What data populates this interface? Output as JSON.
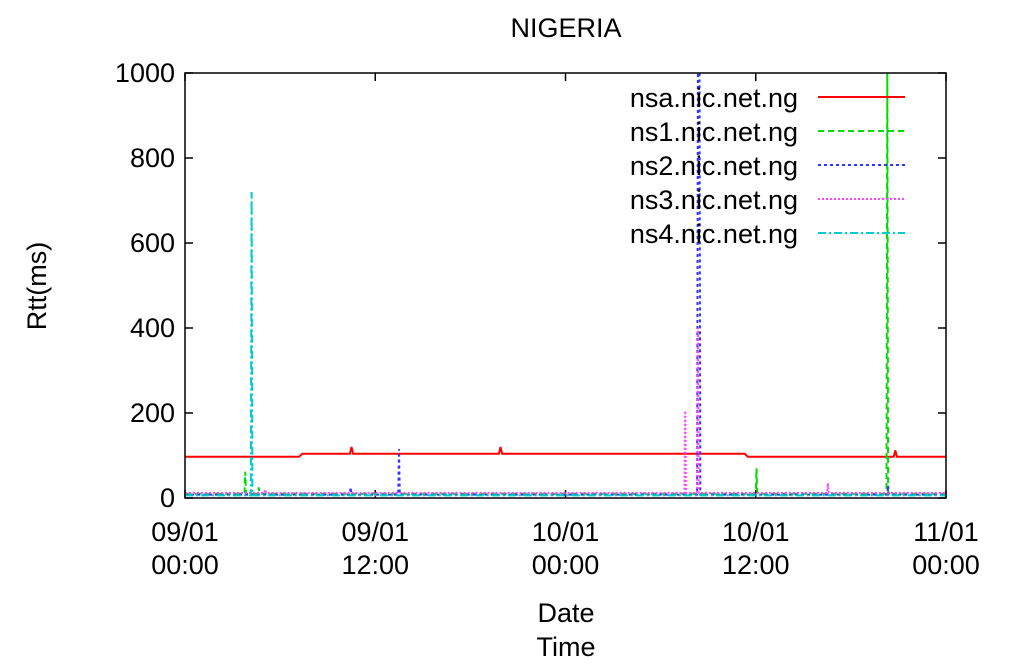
{
  "chart_data": {
    "type": "line",
    "title": "NIGERIA",
    "ylabel": "Rtt(ms)",
    "xlabel_lines": [
      "Date",
      "Time"
    ],
    "ylim": [
      0,
      1000
    ],
    "xlim": [
      0,
      48
    ],
    "yticks": [
      0,
      200,
      400,
      600,
      800,
      1000
    ],
    "xticks": [
      {
        "x": 0,
        "date": "09/01",
        "time": "00:00"
      },
      {
        "x": 12,
        "date": "09/01",
        "time": "12:00"
      },
      {
        "x": 24,
        "date": "10/01",
        "time": "00:00"
      },
      {
        "x": 36,
        "date": "10/01",
        "time": "12:00"
      },
      {
        "x": 48,
        "date": "11/01",
        "time": "00:00"
      }
    ],
    "grid": false,
    "legend_position": "top-right",
    "series": [
      {
        "name": "nsa.nic.net.ng",
        "color": "#ff0000",
        "dash": "",
        "points": [
          [
            0,
            97
          ],
          [
            7.2,
            97
          ],
          [
            7.4,
            104
          ],
          [
            10.4,
            104
          ],
          [
            10.5,
            120
          ],
          [
            10.6,
            104
          ],
          [
            19.8,
            104
          ],
          [
            19.9,
            120
          ],
          [
            20,
            104
          ],
          [
            35.3,
            104
          ],
          [
            35.5,
            97
          ],
          [
            44.7,
            97
          ],
          [
            44.8,
            112
          ],
          [
            44.9,
            97
          ],
          [
            48,
            97
          ]
        ]
      },
      {
        "name": "ns1.nic.net.ng",
        "color": "#00dd00",
        "dash": "6,4",
        "points": [
          [
            0,
            10
          ],
          [
            3.75,
            10
          ],
          [
            3.8,
            62
          ],
          [
            3.85,
            10
          ],
          [
            4.6,
            10
          ],
          [
            4.65,
            25
          ],
          [
            4.7,
            10
          ],
          [
            36,
            10
          ],
          [
            36.05,
            70
          ],
          [
            36.1,
            10
          ],
          [
            44.25,
            10
          ],
          [
            44.3,
            1000
          ],
          [
            44.35,
            10
          ],
          [
            48,
            10
          ]
        ]
      },
      {
        "name": "ns2.nic.net.ng",
        "color": "#3333ff",
        "dash": "3,3",
        "points": [
          [
            0,
            8
          ],
          [
            10.4,
            8
          ],
          [
            10.45,
            25
          ],
          [
            10.5,
            8
          ],
          [
            13.45,
            8
          ],
          [
            13.5,
            115
          ],
          [
            13.55,
            8
          ],
          [
            32.3,
            8
          ],
          [
            32.35,
            1000
          ],
          [
            32.45,
            1000
          ],
          [
            32.5,
            8
          ],
          [
            44.3,
            8
          ],
          [
            44.35,
            30
          ],
          [
            44.4,
            8
          ],
          [
            48,
            8
          ]
        ]
      },
      {
        "name": "ns3.nic.net.ng",
        "color": "#ff44ff",
        "dash": "2,2",
        "points": [
          [
            0,
            12
          ],
          [
            5,
            12
          ],
          [
            5.05,
            20
          ],
          [
            5.1,
            12
          ],
          [
            31.5,
            12
          ],
          [
            31.55,
            205
          ],
          [
            31.6,
            12
          ],
          [
            32.3,
            12
          ],
          [
            32.35,
            400
          ],
          [
            32.4,
            12
          ],
          [
            40.5,
            12
          ],
          [
            40.55,
            35
          ],
          [
            40.6,
            12
          ],
          [
            48,
            12
          ]
        ]
      },
      {
        "name": "ns4.nic.net.ng",
        "color": "#00cccc",
        "dash": "8,3,2,3",
        "points": [
          [
            0,
            6
          ],
          [
            4.15,
            6
          ],
          [
            4.2,
            720
          ],
          [
            4.25,
            6
          ],
          [
            48,
            6
          ]
        ]
      }
    ]
  }
}
